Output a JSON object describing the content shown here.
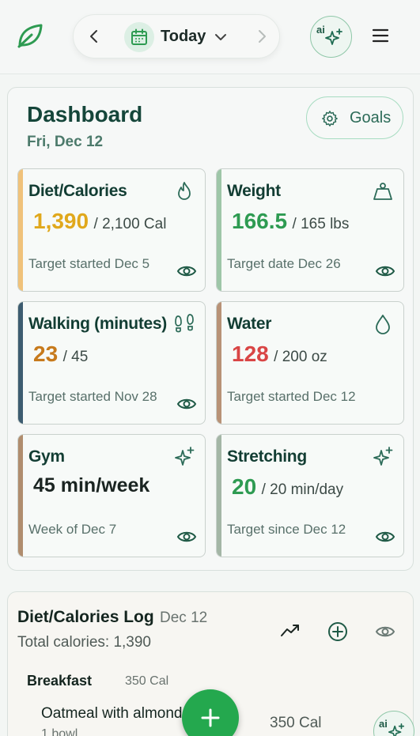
{
  "header": {
    "date_label": "Today",
    "ai_label": "ai",
    "icons": [
      "leaf-icon",
      "chevron-left-icon",
      "calendar-icon",
      "chevron-down-icon",
      "chevron-right-icon",
      "sparkles-icon",
      "menu-icon"
    ]
  },
  "dashboard": {
    "title": "Dashboard",
    "date": "Fri, Dec 12",
    "goals_label": "Goals",
    "cards": [
      {
        "title": "Diet/Calories",
        "value": "1,390",
        "target": "/ 2,100 Cal",
        "footer": "Target started Dec 5",
        "accent": "#f0c27a",
        "value_color": "#e0a81c",
        "icon": "flame-icon"
      },
      {
        "title": "Weight",
        "value": "166.5",
        "target": "/ 165 lbs",
        "footer": "Target date Dec 26",
        "accent": "#9ec6a8",
        "value_color": "#2e9b52",
        "icon": "weight-icon"
      },
      {
        "title": "Walking (minutes)",
        "value": "23",
        "target": "/ 45",
        "footer": "Target started Nov 28",
        "accent": "#3d5c70",
        "value_color": "#c77a1c",
        "icon": "footprints-icon"
      },
      {
        "title": "Water",
        "value": "128",
        "target": "/ 200 oz",
        "footer": "Target started Dec 12",
        "accent": "#b89277",
        "value_color": "#d94545",
        "icon": "droplet-icon"
      },
      {
        "title": "Gym",
        "value": "45 min/week",
        "target": "",
        "footer": "Week of Dec 7",
        "accent": "#b08d6e",
        "value_color": "#1a2421",
        "icon": "sparkles-icon"
      },
      {
        "title": "Stretching",
        "value": "20",
        "target": "/ 20 min/day",
        "footer": "Target since Dec 12",
        "accent": "#a4b6a6",
        "value_color": "#2e9b52",
        "icon": "sparkles-icon"
      }
    ]
  },
  "log": {
    "title": "Diet/Calories Log",
    "date": "Dec 12",
    "total": "Total calories: 1,390",
    "meal": "Breakfast",
    "meal_cal": "350 Cal",
    "item_name": "Oatmeal with almond butter",
    "item_qty": "1 bowl",
    "item_cal": "350 Cal",
    "ai_label": "ai"
  }
}
